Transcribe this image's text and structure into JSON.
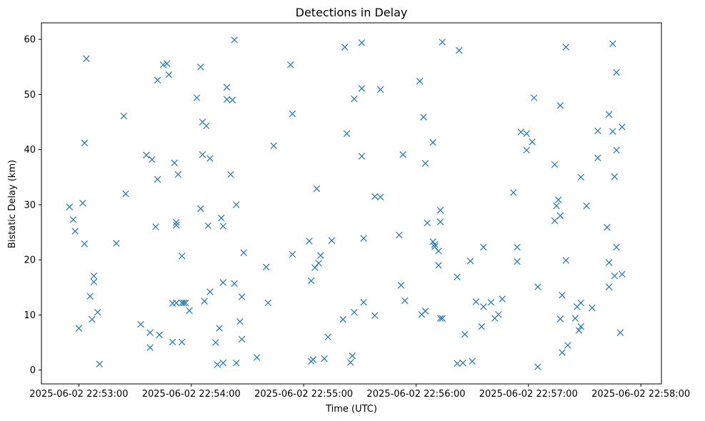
{
  "chart_data": {
    "type": "scatter",
    "title": "Detections in Delay",
    "xlabel": "Time (UTC)",
    "ylabel": "Bistatic Delay (km)",
    "marker": "x",
    "color": "#1f77b4",
    "grid": false,
    "legend": "none",
    "x_tick_labels": [
      "2025-06-02 22:53:00",
      "2025-06-02 22:54:00",
      "2025-06-02 22:55:00",
      "2025-06-02 22:56:00",
      "2025-06-02 22:57:00",
      "2025-06-02 22:58:00"
    ],
    "y_ticks": [
      0,
      10,
      20,
      30,
      40,
      50,
      60
    ],
    "xlim": [
      "2025-06-02 22:52:40",
      "2025-06-02 22:58:11"
    ],
    "ylim": [
      -2.5,
      63
    ],
    "points": [
      [
        "22:52:55",
        29.6
      ],
      [
        "22:52:57",
        27.3
      ],
      [
        "22:52:58",
        25.2
      ],
      [
        "22:53:00",
        7.6
      ],
      [
        "22:53:02",
        30.3
      ],
      [
        "22:53:03",
        41.2
      ],
      [
        "22:53:03",
        22.9
      ],
      [
        "22:53:04",
        56.5
      ],
      [
        "22:53:06",
        13.4
      ],
      [
        "22:53:07",
        9.2
      ],
      [
        "22:53:08",
        16.0
      ],
      [
        "22:53:08",
        17.1
      ],
      [
        "22:53:10",
        10.5
      ],
      [
        "22:53:11",
        1.1
      ],
      [
        "22:53:20",
        23.0
      ],
      [
        "22:53:24",
        46.1
      ],
      [
        "22:53:25",
        32.0
      ],
      [
        "22:53:33",
        8.3
      ],
      [
        "22:53:36",
        39.0
      ],
      [
        "22:53:38",
        6.8
      ],
      [
        "22:53:38",
        4.1
      ],
      [
        "22:53:39",
        38.2
      ],
      [
        "22:53:41",
        26.0
      ],
      [
        "22:53:42",
        52.6
      ],
      [
        "22:53:42",
        34.6
      ],
      [
        "22:53:43",
        6.4
      ],
      [
        "22:53:45",
        55.4
      ],
      [
        "22:53:47",
        55.6
      ],
      [
        "22:53:48",
        53.6
      ],
      [
        "22:53:50",
        12.1
      ],
      [
        "22:53:50",
        5.1
      ],
      [
        "22:53:51",
        37.6
      ],
      [
        "22:53:52",
        26.3
      ],
      [
        "22:53:52",
        26.8
      ],
      [
        "22:53:52",
        12.2
      ],
      [
        "22:53:53",
        35.5
      ],
      [
        "22:53:55",
        12.2
      ],
      [
        "22:53:55",
        20.7
      ],
      [
        "22:53:55",
        5.1
      ],
      [
        "22:53:56",
        12.2
      ],
      [
        "22:53:57",
        12.2
      ],
      [
        "22:53:59",
        10.8
      ],
      [
        "22:54:03",
        49.4
      ],
      [
        "22:54:05",
        55.0
      ],
      [
        "22:54:05",
        29.3
      ],
      [
        "22:54:06",
        45.0
      ],
      [
        "22:54:06",
        39.1
      ],
      [
        "22:54:07",
        12.5
      ],
      [
        "22:54:08",
        44.3
      ],
      [
        "22:54:09",
        26.2
      ],
      [
        "22:54:10",
        38.4
      ],
      [
        "22:54:10",
        14.2
      ],
      [
        "22:54:13",
        5.0
      ],
      [
        "22:54:14",
        1.0
      ],
      [
        "22:54:15",
        7.6
      ],
      [
        "22:54:16",
        27.6
      ],
      [
        "22:54:17",
        26.1
      ],
      [
        "22:54:17",
        15.9
      ],
      [
        "22:54:17",
        1.3
      ],
      [
        "22:54:19",
        51.3
      ],
      [
        "22:54:19",
        49.1
      ],
      [
        "22:54:21",
        35.5
      ],
      [
        "22:54:22",
        49.0
      ],
      [
        "22:54:23",
        15.7
      ],
      [
        "22:54:23",
        59.9
      ],
      [
        "22:54:24",
        30.0
      ],
      [
        "22:54:24",
        1.3
      ],
      [
        "22:54:26",
        8.8
      ],
      [
        "22:54:27",
        13.3
      ],
      [
        "22:54:27",
        5.6
      ],
      [
        "22:54:28",
        21.3
      ],
      [
        "22:54:35",
        2.3
      ],
      [
        "22:54:40",
        18.7
      ],
      [
        "22:54:41",
        12.2
      ],
      [
        "22:54:44",
        40.7
      ],
      [
        "22:54:53",
        55.4
      ],
      [
        "22:54:54",
        46.5
      ],
      [
        "22:54:54",
        21.0
      ],
      [
        "22:55:03",
        23.4
      ],
      [
        "22:55:04",
        1.6
      ],
      [
        "22:55:04",
        16.2
      ],
      [
        "22:55:05",
        1.9
      ],
      [
        "22:55:06",
        18.6
      ],
      [
        "22:55:07",
        32.9
      ],
      [
        "22:55:08",
        19.4
      ],
      [
        "22:55:09",
        20.8
      ],
      [
        "22:55:11",
        2.1
      ],
      [
        "22:55:13",
        6.0
      ],
      [
        "22:55:15",
        23.5
      ],
      [
        "22:55:21",
        9.2
      ],
      [
        "22:55:22",
        58.6
      ],
      [
        "22:55:23",
        42.9
      ],
      [
        "22:55:25",
        1.4
      ],
      [
        "22:55:26",
        2.6
      ],
      [
        "22:55:27",
        49.2
      ],
      [
        "22:55:27",
        10.5
      ],
      [
        "22:55:31",
        38.8
      ],
      [
        "22:55:31",
        51.1
      ],
      [
        "22:55:31",
        59.4
      ],
      [
        "22:55:32",
        23.9
      ],
      [
        "22:55:32",
        12.3
      ],
      [
        "22:55:38",
        9.9
      ],
      [
        "22:55:38",
        31.5
      ],
      [
        "22:55:41",
        31.4
      ],
      [
        "22:55:41",
        50.9
      ],
      [
        "22:55:51",
        24.5
      ],
      [
        "22:55:52",
        15.4
      ],
      [
        "22:55:53",
        39.1
      ],
      [
        "22:55:54",
        12.6
      ],
      [
        "22:56:02",
        52.4
      ],
      [
        "22:56:03",
        10.1
      ],
      [
        "22:56:04",
        45.9
      ],
      [
        "22:56:05",
        37.5
      ],
      [
        "22:56:05",
        10.7
      ],
      [
        "22:56:06",
        26.7
      ],
      [
        "22:56:09",
        41.3
      ],
      [
        "22:56:09",
        23.3
      ],
      [
        "22:56:10",
        22.8
      ],
      [
        "22:56:10",
        22.4
      ],
      [
        "22:56:12",
        21.6
      ],
      [
        "22:56:12",
        19.0
      ],
      [
        "22:56:13",
        29.0
      ],
      [
        "22:56:13",
        26.9
      ],
      [
        "22:56:13",
        9.4
      ],
      [
        "22:56:14",
        59.5
      ],
      [
        "22:56:14",
        9.4
      ],
      [
        "22:56:22",
        16.9
      ],
      [
        "22:56:22",
        1.2
      ],
      [
        "22:56:23",
        58.0
      ],
      [
        "22:56:25",
        1.3
      ],
      [
        "22:56:26",
        6.5
      ],
      [
        "22:56:29",
        19.8
      ],
      [
        "22:56:30",
        1.6
      ],
      [
        "22:56:32",
        12.4
      ],
      [
        "22:56:35",
        7.9
      ],
      [
        "22:56:36",
        22.3
      ],
      [
        "22:56:36",
        11.5
      ],
      [
        "22:56:40",
        12.3
      ],
      [
        "22:56:42",
        9.4
      ],
      [
        "22:56:44",
        10.1
      ],
      [
        "22:56:46",
        12.9
      ],
      [
        "22:56:52",
        32.2
      ],
      [
        "22:56:54",
        22.3
      ],
      [
        "22:56:54",
        19.7
      ],
      [
        "22:56:56",
        43.2
      ],
      [
        "22:56:59",
        42.9
      ],
      [
        "22:56:59",
        39.9
      ],
      [
        "22:57:02",
        41.4
      ],
      [
        "22:57:03",
        49.4
      ],
      [
        "22:57:05",
        15.1
      ],
      [
        "22:57:05",
        0.6
      ],
      [
        "22:57:14",
        37.3
      ],
      [
        "22:57:14",
        27.1
      ],
      [
        "22:57:15",
        29.8
      ],
      [
        "22:57:16",
        30.9
      ],
      [
        "22:57:17",
        28.0
      ],
      [
        "22:57:17",
        48.0
      ],
      [
        "22:57:17",
        9.3
      ],
      [
        "22:57:18",
        3.2
      ],
      [
        "22:57:18",
        13.6
      ],
      [
        "22:57:20",
        58.6
      ],
      [
        "22:57:20",
        19.9
      ],
      [
        "22:57:21",
        4.5
      ],
      [
        "22:57:25",
        9.4
      ],
      [
        "22:57:26",
        11.5
      ],
      [
        "22:57:27",
        7.2
      ],
      [
        "22:57:28",
        35.0
      ],
      [
        "22:57:28",
        7.9
      ],
      [
        "22:57:28",
        12.2
      ],
      [
        "22:57:31",
        29.8
      ],
      [
        "22:57:34",
        11.3
      ],
      [
        "22:57:37",
        43.4
      ],
      [
        "22:57:37",
        38.5
      ],
      [
        "22:57:42",
        25.9
      ],
      [
        "22:57:43",
        46.4
      ],
      [
        "22:57:43",
        19.5
      ],
      [
        "22:57:43",
        15.1
      ],
      [
        "22:57:45",
        59.2
      ],
      [
        "22:57:45",
        43.3
      ],
      [
        "22:57:46",
        35.1
      ],
      [
        "22:57:46",
        17.1
      ],
      [
        "22:57:47",
        54.0
      ],
      [
        "22:57:47",
        39.9
      ],
      [
        "22:57:47",
        22.3
      ],
      [
        "22:57:49",
        6.8
      ],
      [
        "22:57:50",
        44.1
      ],
      [
        "22:57:50",
        17.4
      ]
    ]
  }
}
